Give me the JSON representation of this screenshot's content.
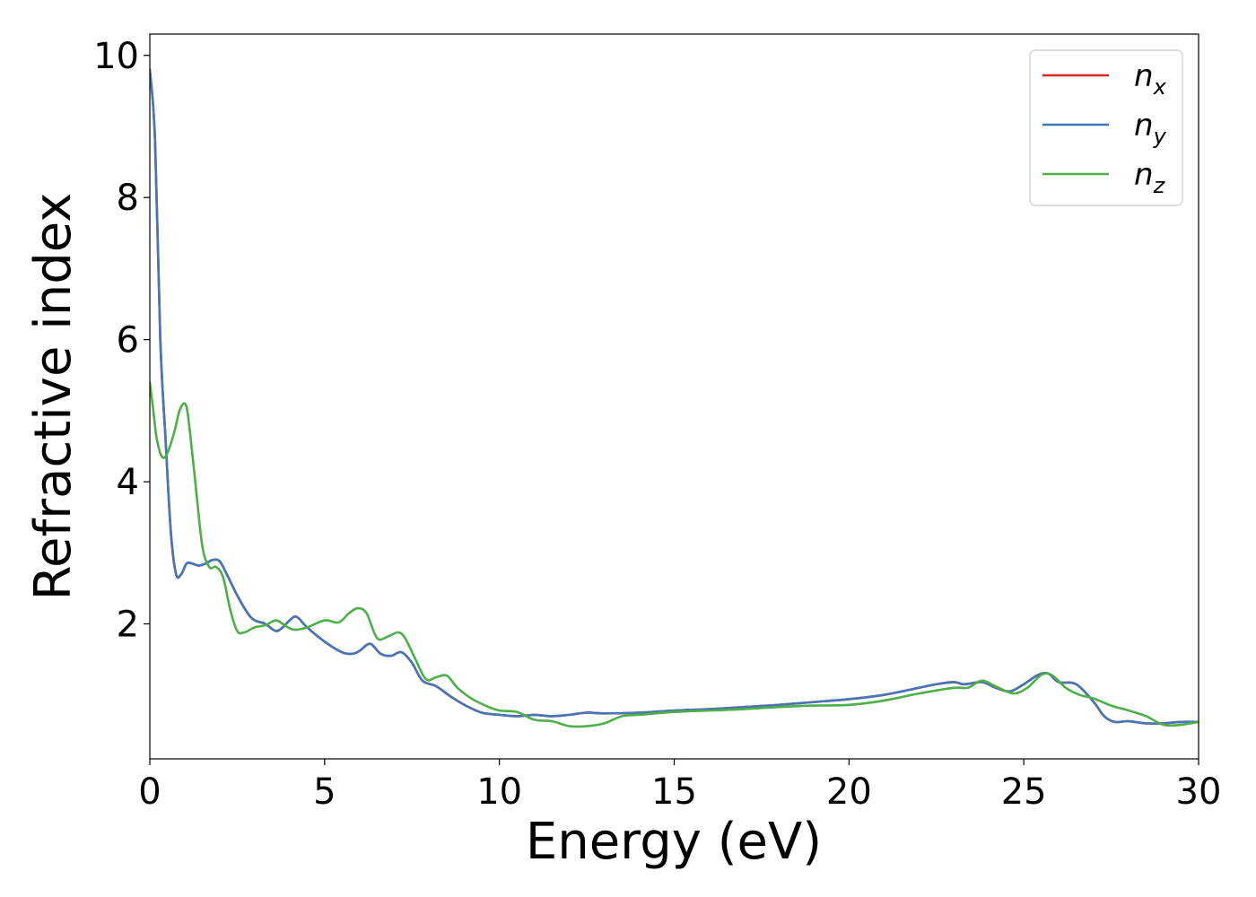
{
  "chart_data": {
    "type": "line",
    "xlabel": "Energy (eV)",
    "ylabel": "Refractive index",
    "xlim": [
      0,
      30
    ],
    "ylim": [
      0.1,
      10.3
    ],
    "xticks": [
      0,
      5,
      10,
      15,
      20,
      25,
      30
    ],
    "yticks": [
      2,
      4,
      6,
      8,
      10
    ],
    "xtick_labels": [
      "0",
      "5",
      "10",
      "15",
      "20",
      "25",
      "30"
    ],
    "ytick_labels": [
      "2",
      "4",
      "6",
      "8",
      "10"
    ],
    "grid": false,
    "legend_position": "top-right",
    "series": [
      {
        "name": "n",
        "subscript": "x",
        "color": "#d62728",
        "x": [
          0,
          0.15,
          0.3,
          0.45,
          0.6,
          0.75,
          0.9,
          1.05,
          1.2,
          1.4,
          1.6,
          1.8,
          2.0,
          2.2,
          2.5,
          2.8,
          3.0,
          3.3,
          3.6,
          3.8,
          4.0,
          4.2,
          4.5,
          5.0,
          5.5,
          5.8,
          6.0,
          6.3,
          6.6,
          6.9,
          7.2,
          7.5,
          7.8,
          8.2,
          8.6,
          9.0,
          9.5,
          10.0,
          10.5,
          11.0,
          11.5,
          12.0,
          12.5,
          13.0,
          14.0,
          15.0,
          16.0,
          17.0,
          18.0,
          19.0,
          20.0,
          21.0,
          22.0,
          22.5,
          23.0,
          23.3,
          23.8,
          24.2,
          24.6,
          25.0,
          25.4,
          25.7,
          26.0,
          26.5,
          27.0,
          27.3,
          27.6,
          28.0,
          28.5,
          29.0,
          29.5,
          30.0
        ],
        "y": [
          9.8,
          8.8,
          6.0,
          4.6,
          3.3,
          2.7,
          2.7,
          2.85,
          2.85,
          2.82,
          2.85,
          2.9,
          2.88,
          2.7,
          2.4,
          2.15,
          2.05,
          2.0,
          1.9,
          1.95,
          2.05,
          2.1,
          1.95,
          1.75,
          1.6,
          1.58,
          1.62,
          1.72,
          1.58,
          1.55,
          1.6,
          1.45,
          1.2,
          1.12,
          0.98,
          0.86,
          0.75,
          0.72,
          0.7,
          0.72,
          0.7,
          0.72,
          0.75,
          0.74,
          0.75,
          0.78,
          0.8,
          0.83,
          0.86,
          0.9,
          0.94,
          1.0,
          1.1,
          1.15,
          1.18,
          1.15,
          1.18,
          1.1,
          1.05,
          1.15,
          1.28,
          1.3,
          1.18,
          1.15,
          0.9,
          0.7,
          0.62,
          0.63,
          0.6,
          0.6,
          0.62,
          0.62
        ]
      },
      {
        "name": "n",
        "subscript": "y",
        "color": "#4676b4",
        "x": [
          0,
          0.15,
          0.3,
          0.45,
          0.6,
          0.75,
          0.9,
          1.05,
          1.2,
          1.4,
          1.6,
          1.8,
          2.0,
          2.2,
          2.5,
          2.8,
          3.0,
          3.3,
          3.6,
          3.8,
          4.0,
          4.2,
          4.5,
          5.0,
          5.5,
          5.8,
          6.0,
          6.3,
          6.6,
          6.9,
          7.2,
          7.5,
          7.8,
          8.2,
          8.6,
          9.0,
          9.5,
          10.0,
          10.5,
          11.0,
          11.5,
          12.0,
          12.5,
          13.0,
          14.0,
          15.0,
          16.0,
          17.0,
          18.0,
          19.0,
          20.0,
          21.0,
          22.0,
          22.5,
          23.0,
          23.3,
          23.8,
          24.2,
          24.6,
          25.0,
          25.4,
          25.7,
          26.0,
          26.5,
          27.0,
          27.3,
          27.6,
          28.0,
          28.5,
          29.0,
          29.5,
          30.0
        ],
        "y": [
          9.8,
          8.8,
          6.0,
          4.6,
          3.3,
          2.7,
          2.7,
          2.85,
          2.85,
          2.82,
          2.85,
          2.9,
          2.88,
          2.7,
          2.4,
          2.15,
          2.05,
          2.0,
          1.9,
          1.95,
          2.05,
          2.1,
          1.95,
          1.75,
          1.6,
          1.58,
          1.62,
          1.72,
          1.58,
          1.55,
          1.6,
          1.45,
          1.2,
          1.12,
          0.98,
          0.86,
          0.75,
          0.72,
          0.7,
          0.72,
          0.7,
          0.72,
          0.75,
          0.74,
          0.75,
          0.78,
          0.8,
          0.83,
          0.86,
          0.9,
          0.94,
          1.0,
          1.1,
          1.15,
          1.18,
          1.15,
          1.18,
          1.1,
          1.05,
          1.15,
          1.28,
          1.3,
          1.18,
          1.15,
          0.9,
          0.7,
          0.62,
          0.63,
          0.6,
          0.6,
          0.62,
          0.62
        ]
      },
      {
        "name": "n",
        "subscript": "z",
        "color": "#4daf4a",
        "x": [
          0,
          0.1,
          0.2,
          0.35,
          0.5,
          0.7,
          0.85,
          1.0,
          1.1,
          1.3,
          1.5,
          1.7,
          1.9,
          2.1,
          2.3,
          2.5,
          2.7,
          3.0,
          3.3,
          3.6,
          3.8,
          4.1,
          4.5,
          5.0,
          5.4,
          5.7,
          5.95,
          6.2,
          6.5,
          6.8,
          7.1,
          7.3,
          7.6,
          7.9,
          8.2,
          8.5,
          8.8,
          9.2,
          9.6,
          10.0,
          10.5,
          11.0,
          11.5,
          12.0,
          12.5,
          13.0,
          13.5,
          14.0,
          15.0,
          16.0,
          17.0,
          18.0,
          19.0,
          20.0,
          21.0,
          22.0,
          23.0,
          23.4,
          23.8,
          24.2,
          24.7,
          25.1,
          25.5,
          25.8,
          26.2,
          26.6,
          27.0,
          27.5,
          28.0,
          28.5,
          29.0,
          29.5,
          30.0
        ],
        "y": [
          5.4,
          5.0,
          4.6,
          4.35,
          4.4,
          4.7,
          5.0,
          5.1,
          4.9,
          4.0,
          3.1,
          2.8,
          2.8,
          2.65,
          2.2,
          1.9,
          1.88,
          1.95,
          1.98,
          2.05,
          2.0,
          1.92,
          1.95,
          2.05,
          2.02,
          2.15,
          2.22,
          2.15,
          1.8,
          1.82,
          1.88,
          1.8,
          1.5,
          1.22,
          1.25,
          1.27,
          1.1,
          0.95,
          0.85,
          0.78,
          0.76,
          0.65,
          0.63,
          0.56,
          0.56,
          0.6,
          0.7,
          0.72,
          0.76,
          0.78,
          0.8,
          0.83,
          0.85,
          0.86,
          0.92,
          1.02,
          1.1,
          1.1,
          1.2,
          1.12,
          1.02,
          1.1,
          1.28,
          1.28,
          1.1,
          1.0,
          0.95,
          0.85,
          0.78,
          0.7,
          0.58,
          0.58,
          0.62
        ]
      }
    ]
  }
}
